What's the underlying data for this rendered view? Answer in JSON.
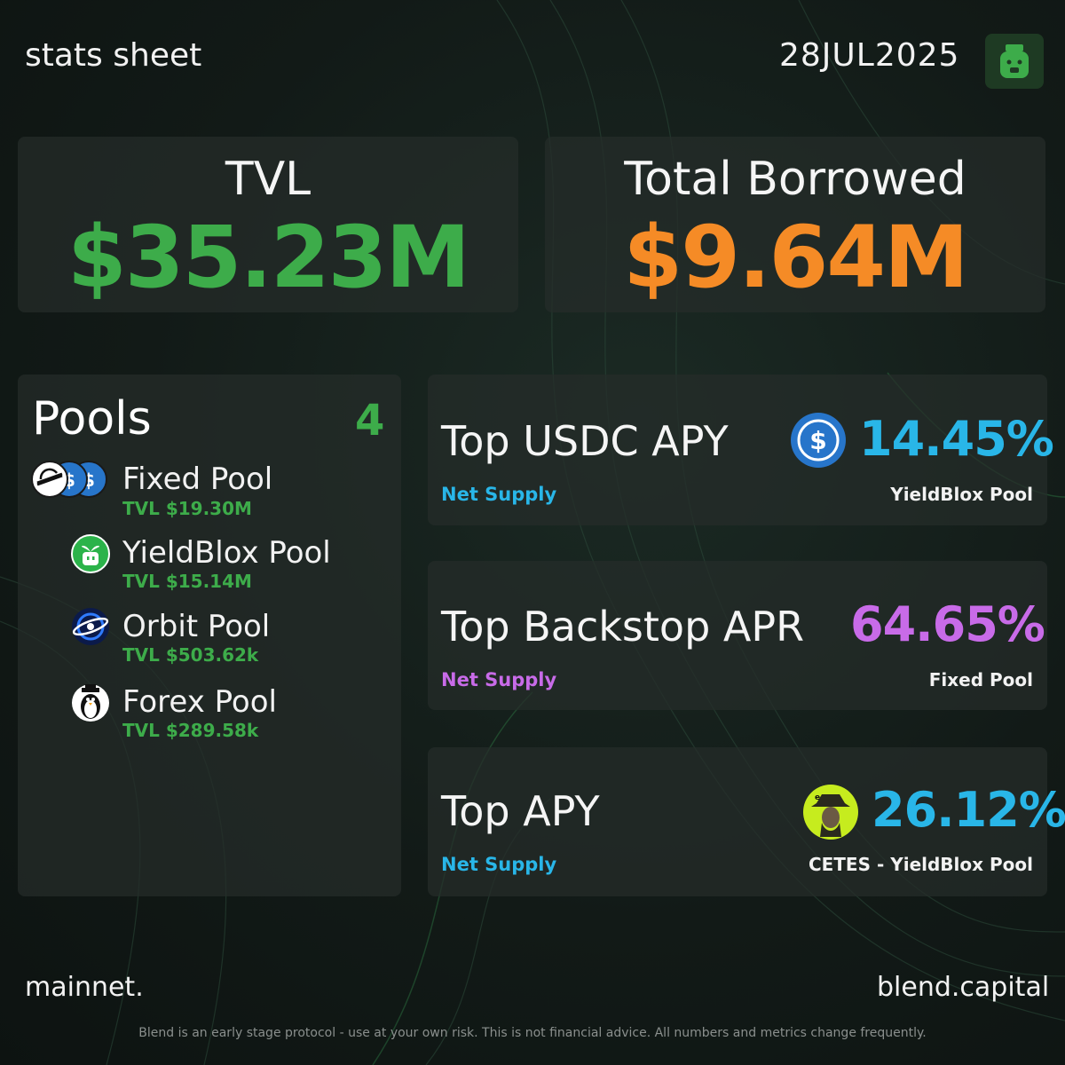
{
  "header": {
    "title": "stats sheet",
    "date": "28JUL2025",
    "logo_icon": "blend-jar-icon"
  },
  "tvl": {
    "label": "TVL",
    "value": "$35.23M"
  },
  "borrowed": {
    "label": "Total Borrowed",
    "value": "$9.64M"
  },
  "pools": {
    "title": "Pools",
    "count": "4",
    "items": [
      {
        "name": "Fixed Pool",
        "tvl": "TVL $19.30M",
        "icon": "stellar-usdc-icons"
      },
      {
        "name": "YieldBlox Pool",
        "tvl": "TVL $15.14M",
        "icon": "yieldblox-icon"
      },
      {
        "name": "Orbit Pool",
        "tvl": "TVL $503.62k",
        "icon": "orbit-icon"
      },
      {
        "name": "Forex Pool",
        "tvl": "TVL $289.58k",
        "icon": "penguin-icon"
      }
    ]
  },
  "metrics": [
    {
      "title": "Top USDC APY",
      "sub": "Net Supply",
      "value": "14.45%",
      "pool": "YieldBlox Pool",
      "icon": "usdc-icon"
    },
    {
      "title": "Top Backstop APR",
      "sub": "Net Supply",
      "value": "64.65%",
      "pool": "Fixed Pool",
      "icon": ""
    },
    {
      "title": "Top APY",
      "sub": "Net Supply",
      "value": "26.12%",
      "pool": "CETES - YieldBlox Pool",
      "icon": "cetes-icon"
    }
  ],
  "colors": {
    "green": "#3dac4a",
    "orange": "#f58b26",
    "blue": "#29b6e8",
    "purple": "#c86be8"
  },
  "footer": {
    "network": "mainnet.",
    "site": "blend.capital",
    "disclaimer": "Blend is an early stage protocol - use at your own risk. This is not financial advice. All numbers and metrics change frequently."
  }
}
